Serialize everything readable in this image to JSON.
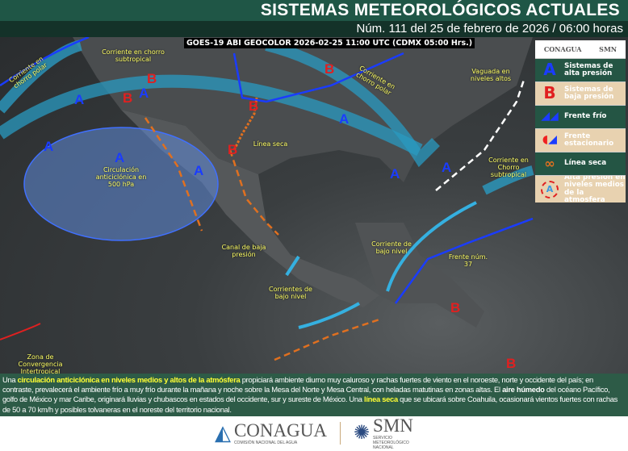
{
  "header": {
    "title": "SISTEMAS METEOROLÓGICOS ACTUALES",
    "subtitle": "Núm. 111 del 25 de febrero de 2026 / 06:00 horas"
  },
  "map": {
    "satellite_caption": "GOES-19 ABI GEOCOLOR 2026-02-25 11:00 UTC (CDMX  05:00 Hrs.)",
    "labels": [
      "Corriente en chorro polar",
      "Corriente en chorro subtropical",
      "Circulación anticiclónica en 500 hPa",
      "Línea seca",
      "Canal de baja presión",
      "Corriente de bajo nivel",
      "Corrientes de bajo nivel",
      "Frente núm. 37",
      "Corriente en Chorro subtropical",
      "Vaguada en niveles altos",
      "Corriente en chorro polar",
      "Zona de Convergencia Intertropical"
    ],
    "high_letter": "A",
    "low_letter": "B"
  },
  "legend": {
    "logos": [
      "CONAGUA",
      "SMN"
    ],
    "items": [
      "Sistemas de alta presión",
      "Sistemas de baja presión",
      "Frente frío",
      "Frente estacionario",
      "Línea seca",
      "Alta presión en niveles medios de la atmosfera"
    ]
  },
  "colors": {
    "header": "#1f5646",
    "high": "#1a3cff",
    "low": "#e02020",
    "jet": "#2a9ac0",
    "dry_line": "#e07020"
  },
  "text": {
    "p1": "Una ",
    "h1": "circulación anticiclónica en niveles medios y altos de la atmósfera",
    "p2": " propiciará ambiente diurno muy caluroso y rachas fuertes de viento en el noroeste, norte y occidente del país; en contraste, prevalecerá el ambiente frío a muy frío durante la mañana y noche sobre la Mesa del Norte y Mesa Central, con heladas matutinas en zonas altas. El ",
    "h2": "aire húmedo",
    "p3": " del océano Pacífico, golfo de México y mar Caribe, originará lluvias y chubascos en estados del occidente, sur y sureste de México. Una ",
    "h3": "línea seca",
    "p4": " que se ubicará sobre Coahuila, ocasionará vientos fuertes con rachas de 50 a 70 km/h y posibles tolvaneras en el noreste del territorio nacional."
  },
  "footer": {
    "conagua": "CONAGUA",
    "conagua_sub": "COMISIÓN NACIONAL DEL AGUA",
    "smn": "SMN",
    "smn_sub": "SERVICIO METEOROLÓGICO NACIONAL"
  }
}
